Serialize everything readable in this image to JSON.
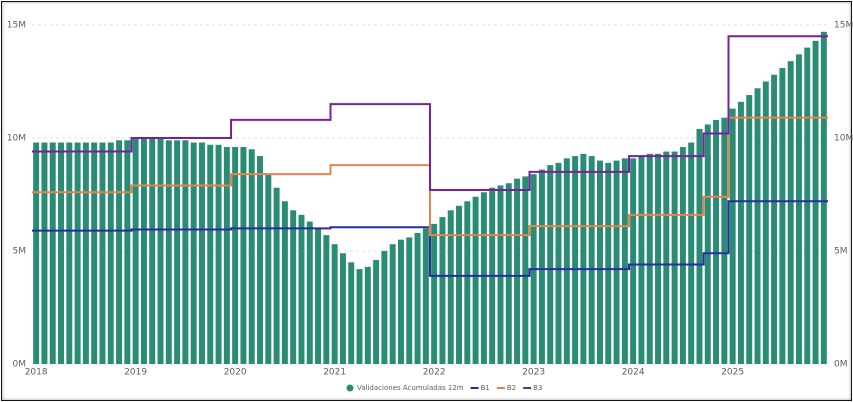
{
  "chart_data": {
    "type": "bar",
    "categories": [
      "2018",
      null,
      null,
      null,
      null,
      null,
      null,
      null,
      null,
      null,
      null,
      null,
      "2019",
      null,
      null,
      null,
      null,
      null,
      null,
      null,
      null,
      null,
      null,
      null,
      "2020",
      null,
      null,
      null,
      null,
      null,
      null,
      null,
      null,
      null,
      null,
      null,
      "2021",
      null,
      null,
      null,
      null,
      null,
      null,
      null,
      null,
      null,
      null,
      null,
      "2022",
      null,
      null,
      null,
      null,
      null,
      null,
      null,
      null,
      null,
      null,
      null,
      "2023",
      null,
      null,
      null,
      null,
      null,
      null,
      null,
      null,
      null,
      null,
      null,
      "2024",
      null,
      null,
      null,
      null,
      null,
      null,
      null,
      null,
      null,
      null,
      null,
      "2025",
      null,
      null,
      null,
      null,
      null,
      null,
      null,
      null,
      null,
      null,
      null
    ],
    "series": [
      {
        "name": "Validaciones Acumuladas 12m",
        "color": "#2a8c75",
        "values": [
          9800000,
          9800000,
          9800000,
          9800000,
          9800000,
          9800000,
          9800000,
          9800000,
          9800000,
          9800000,
          9900000,
          9900000,
          10000000,
          10000000,
          10000000,
          10000000,
          9900000,
          9900000,
          9900000,
          9800000,
          9800000,
          9700000,
          9700000,
          9600000,
          9600000,
          9600000,
          9500000,
          9200000,
          8400000,
          7800000,
          7200000,
          6800000,
          6600000,
          6300000,
          6000000,
          5700000,
          5300000,
          4900000,
          4500000,
          4200000,
          4300000,
          4600000,
          5000000,
          5300000,
          5500000,
          5600000,
          5800000,
          6000000,
          6200000,
          6500000,
          6800000,
          7000000,
          7200000,
          7400000,
          7600000,
          7800000,
          7900000,
          8000000,
          8200000,
          8300000,
          8400000,
          8600000,
          8800000,
          8900000,
          9100000,
          9200000,
          9300000,
          9200000,
          9000000,
          8900000,
          9000000,
          9100000,
          9100000,
          9200000,
          9300000,
          9300000,
          9400000,
          9400000,
          9600000,
          9800000,
          10400000,
          10600000,
          10800000,
          10900000,
          11300000,
          11600000,
          11900000,
          12200000,
          12500000,
          12800000,
          13100000,
          13400000,
          13700000,
          14000000,
          14300000,
          14700000
        ]
      },
      {
        "name": "B1",
        "color": "#2a2aa6",
        "axis": "y2",
        "values": [
          5900000,
          5900000,
          5900000,
          5900000,
          5900000,
          5900000,
          5900000,
          5900000,
          5900000,
          5900000,
          5900000,
          5900000,
          5950000,
          5950000,
          5950000,
          5950000,
          5950000,
          5950000,
          5950000,
          5950000,
          5950000,
          5950000,
          5950000,
          5950000,
          6000000,
          6000000,
          6000000,
          6000000,
          6000000,
          6000000,
          6000000,
          6000000,
          6000000,
          6000000,
          6000000,
          6000000,
          6050000,
          6050000,
          6050000,
          6050000,
          6050000,
          6050000,
          6050000,
          6050000,
          6050000,
          6050000,
          6050000,
          6050000,
          3900000,
          3900000,
          3900000,
          3900000,
          3900000,
          3900000,
          3900000,
          3900000,
          3900000,
          3900000,
          3900000,
          3900000,
          4200000,
          4200000,
          4200000,
          4200000,
          4200000,
          4200000,
          4200000,
          4200000,
          4200000,
          4200000,
          4200000,
          4200000,
          4400000,
          4400000,
          4400000,
          4400000,
          4400000,
          4400000,
          4400000,
          4400000,
          4400000,
          4900000,
          4900000,
          4900000,
          7200000,
          7200000,
          7200000,
          7200000,
          7200000,
          7200000,
          7200000,
          7200000,
          7200000,
          7200000,
          7200000,
          7200000
        ]
      },
      {
        "name": "B2",
        "color": "#e8834e",
        "axis": "y2",
        "values": [
          7600000,
          7600000,
          7600000,
          7600000,
          7600000,
          7600000,
          7600000,
          7600000,
          7600000,
          7600000,
          7600000,
          7600000,
          7900000,
          7900000,
          7900000,
          7900000,
          7900000,
          7900000,
          7900000,
          7900000,
          7900000,
          7900000,
          7900000,
          7900000,
          8400000,
          8400000,
          8400000,
          8400000,
          8400000,
          8400000,
          8400000,
          8400000,
          8400000,
          8400000,
          8400000,
          8400000,
          8800000,
          8800000,
          8800000,
          8800000,
          8800000,
          8800000,
          8800000,
          8800000,
          8800000,
          8800000,
          8800000,
          8800000,
          5700000,
          5700000,
          5700000,
          5700000,
          5700000,
          5700000,
          5700000,
          5700000,
          5700000,
          5700000,
          5700000,
          5700000,
          6100000,
          6100000,
          6100000,
          6100000,
          6100000,
          6100000,
          6100000,
          6100000,
          6100000,
          6100000,
          6100000,
          6100000,
          6600000,
          6600000,
          6600000,
          6600000,
          6600000,
          6600000,
          6600000,
          6600000,
          6600000,
          7400000,
          7400000,
          7400000,
          10900000,
          10900000,
          10900000,
          10900000,
          10900000,
          10900000,
          10900000,
          10900000,
          10900000,
          10900000,
          10900000,
          10900000
        ]
      },
      {
        "name": "B3",
        "color": "#7b1fa2",
        "axis": "y2",
        "values": [
          9400000,
          9400000,
          9400000,
          9400000,
          9400000,
          9400000,
          9400000,
          9400000,
          9400000,
          9400000,
          9400000,
          9400000,
          10000000,
          10000000,
          10000000,
          10000000,
          10000000,
          10000000,
          10000000,
          10000000,
          10000000,
          10000000,
          10000000,
          10000000,
          10800000,
          10800000,
          10800000,
          10800000,
          10800000,
          10800000,
          10800000,
          10800000,
          10800000,
          10800000,
          10800000,
          10800000,
          11500000,
          11500000,
          11500000,
          11500000,
          11500000,
          11500000,
          11500000,
          11500000,
          11500000,
          11500000,
          11500000,
          11500000,
          7700000,
          7700000,
          7700000,
          7700000,
          7700000,
          7700000,
          7700000,
          7700000,
          7700000,
          7700000,
          7700000,
          7700000,
          8500000,
          8500000,
          8500000,
          8500000,
          8500000,
          8500000,
          8500000,
          8500000,
          8500000,
          8500000,
          8500000,
          8500000,
          9200000,
          9200000,
          9200000,
          9200000,
          9200000,
          9200000,
          9200000,
          9200000,
          9200000,
          10200000,
          10200000,
          10200000,
          14500000,
          14500000,
          14500000,
          14500000,
          14500000,
          14500000,
          14500000,
          14500000,
          14500000,
          14500000,
          14500000,
          14500000
        ]
      }
    ],
    "ylim": [
      0,
      15000000
    ],
    "yticks": [
      {
        "value": 0,
        "label": "0M"
      },
      {
        "value": 5000000,
        "label": "5M"
      },
      {
        "value": 10000000,
        "label": "10M"
      },
      {
        "value": 15000000,
        "label": "15M"
      }
    ],
    "y2lim": [
      0,
      15000000
    ],
    "y2ticks": [
      {
        "value": 0,
        "label": "0M"
      },
      {
        "value": 5000000,
        "label": "5M"
      },
      {
        "value": 10000000,
        "label": "10M"
      },
      {
        "value": 15000000,
        "label": "15M"
      }
    ],
    "grid": true,
    "legend": "bottom"
  }
}
